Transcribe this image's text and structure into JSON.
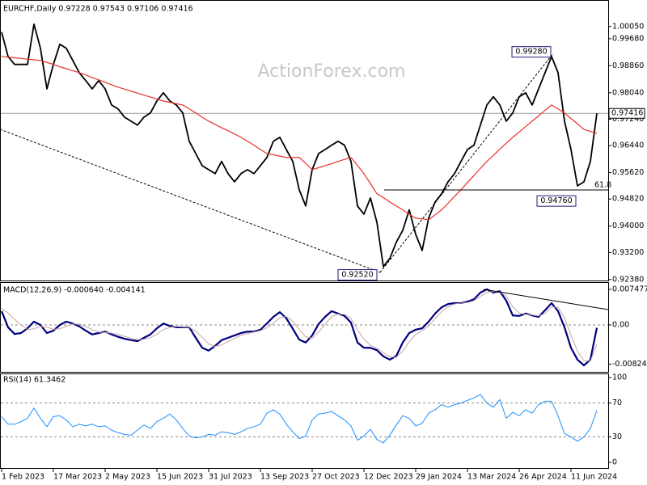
{
  "chart_data": [
    {
      "type": "line",
      "title": "EURCHF,Daily  0.97228 0.97543 0.97106 0.97416",
      "watermark": "ActionForex.com",
      "ylim": [
        0.9235,
        1.0073
      ],
      "yticks": [
        {
          "value": 1.0005,
          "label": "1.00050"
        },
        {
          "value": 0.9968,
          "label": "0.99680"
        },
        {
          "value": 0.9886,
          "label": "0.98860"
        },
        {
          "value": 0.9804,
          "label": "0.98040"
        },
        {
          "value": 0.9724,
          "label": "0.97240"
        },
        {
          "value": 0.9644,
          "label": "0.96440"
        },
        {
          "value": 0.9562,
          "label": "0.95620"
        },
        {
          "value": 0.9482,
          "label": "0.94820"
        },
        {
          "value": 0.94,
          "label": "0.94000"
        },
        {
          "value": 0.932,
          "label": "0.93200"
        },
        {
          "value": 0.9238,
          "label": "0.92380"
        }
      ],
      "last_price": 0.97416,
      "annotations": [
        {
          "label": "0.99280",
          "value": 0.9928
        },
        {
          "label": "0.94760",
          "value": 0.9476
        },
        {
          "label": "0.92520",
          "value": 0.9252
        }
      ],
      "fib_label": "61.8",
      "categories": [
        "1 Feb 2023",
        null,
        null,
        null,
        null,
        null,
        null,
        null,
        "17 Mar 2023",
        null,
        null,
        null,
        null,
        null,
        null,
        null,
        "2 May 2023",
        null,
        null,
        null,
        null,
        null,
        null,
        null,
        "15 Jun 2023",
        null,
        null,
        null,
        null,
        null,
        null,
        null,
        "31 Jul 2023",
        null,
        null,
        null,
        null,
        null,
        null,
        null,
        "13 Sep 2023",
        null,
        null,
        null,
        null,
        null,
        null,
        null,
        "27 Oct 2023",
        null,
        null,
        null,
        null,
        null,
        null,
        null,
        "12 Dec 2023",
        null,
        null,
        null,
        null,
        null,
        null,
        null,
        "29 Jan 2024",
        null,
        null,
        null,
        null,
        null,
        null,
        null,
        "13 Mar 2024",
        null,
        null,
        null,
        null,
        null,
        null,
        null,
        "26 Apr 2024",
        null,
        null,
        null,
        null,
        null,
        null,
        null,
        "11 Jun 2024",
        null,
        null,
        null,
        null
      ],
      "series": [
        {
          "name": "EURCHF",
          "color": "#000000",
          "values": [
            0.9988,
            0.9914,
            0.989,
            0.989,
            0.989,
            1.0012,
            0.9939,
            0.9816,
            0.989,
            0.9951,
            0.9939,
            0.9902,
            0.9865,
            0.9841,
            0.9816,
            0.9841,
            0.9816,
            0.9767,
            0.9755,
            0.973,
            0.9718,
            0.9706,
            0.973,
            0.9743,
            0.9779,
            0.9804,
            0.9779,
            0.9767,
            0.9743,
            0.9657,
            0.962,
            0.9583,
            0.9571,
            0.9559,
            0.9596,
            0.9559,
            0.9534,
            0.9559,
            0.9571,
            0.9559,
            0.9583,
            0.9608,
            0.9657,
            0.9669,
            0.9632,
            0.9596,
            0.951,
            0.9461,
            0.9571,
            0.962,
            0.9632,
            0.9645,
            0.9657,
            0.9645,
            0.9596,
            0.9461,
            0.9436,
            0.9485,
            0.9412,
            0.9277,
            0.9302,
            0.9351,
            0.9387,
            0.9449,
            0.9375,
            0.9326,
            0.9424,
            0.9473,
            0.9498,
            0.9534,
            0.9559,
            0.9596,
            0.9632,
            0.9645,
            0.9706,
            0.9767,
            0.9792,
            0.9767,
            0.9718,
            0.9743,
            0.9792,
            0.9804,
            0.9767,
            0.9816,
            0.9865,
            0.9914,
            0.9865,
            0.9718,
            0.9632,
            0.9522,
            0.9534,
            0.9596,
            0.9742
          ]
        },
        {
          "name": "MA",
          "color": "#e8312a",
          "values": [
            0.9914,
            0.9912,
            0.991,
            0.9908,
            0.9906,
            0.9904,
            0.9902,
            0.9896,
            0.989,
            0.9883,
            0.9877,
            0.9871,
            0.9865,
            0.9858,
            0.985,
            0.9843,
            0.9836,
            0.9828,
            0.9821,
            0.9815,
            0.9809,
            0.9803,
            0.9797,
            0.9791,
            0.9785,
            0.9779,
            0.9775,
            0.9771,
            0.9767,
            0.9755,
            0.9743,
            0.973,
            0.9718,
            0.9708,
            0.9698,
            0.9689,
            0.9679,
            0.9669,
            0.9657,
            0.9645,
            0.9632,
            0.962,
            0.9616,
            0.9612,
            0.9608,
            0.9608,
            0.9608,
            0.959,
            0.9571,
            0.9577,
            0.9583,
            0.9589,
            0.9596,
            0.9602,
            0.9608,
            0.9584,
            0.9559,
            0.9529,
            0.9498,
            0.9486,
            0.9473,
            0.9461,
            0.9449,
            0.9436,
            0.9424,
            0.9422,
            0.9419,
            0.9434,
            0.9449,
            0.9469,
            0.949,
            0.951,
            0.9532,
            0.9553,
            0.9575,
            0.9596,
            0.9614,
            0.9633,
            0.9651,
            0.9669,
            0.9685,
            0.9702,
            0.9718,
            0.9734,
            0.9751,
            0.9767,
            0.9755,
            0.9743,
            0.9726,
            0.971,
            0.9693,
            0.9687,
            0.9681
          ]
        }
      ]
    },
    {
      "type": "line",
      "title": "MACD(12,26,9) -0.000640 -0.004141",
      "ylim": [
        -0.00986,
        0.00884
      ],
      "yticks": [
        0.007477,
        {
          "value": 0,
          "label": "0.00"
        },
        -0.00824
      ],
      "levels": [
        0
      ],
      "series": [
        {
          "name": "MACD",
          "color": "#00007f",
          "values": [
            0.0029,
            -0.0005,
            -0.0019,
            -0.0017,
            -0.0007,
            0.0007,
            0,
            -0.0017,
            -0.0012,
            0,
            0.0007,
            0.0003,
            -0.0003,
            -0.0012,
            -0.002,
            -0.0017,
            -0.0014,
            -0.002,
            -0.0025,
            -0.0029,
            -0.0032,
            -0.0034,
            -0.0027,
            -0.002,
            -0.0007,
            0.0003,
            -0.0002,
            -0.0005,
            -0.0005,
            -0.0005,
            -0.0027,
            -0.0048,
            -0.0054,
            -0.0044,
            -0.0032,
            -0.0027,
            -0.0022,
            -0.0017,
            -0.0014,
            -0.0014,
            -0.001,
            0.0003,
            0.0017,
            0.0027,
            0.0014,
            -0.0008,
            -0.0031,
            -0.0037,
            -0.0022,
            0.0002,
            0.0017,
            0.0029,
            0.0024,
            0.0019,
            0.0005,
            -0.0037,
            -0.0048,
            -0.0048,
            -0.0053,
            -0.0066,
            -0.0073,
            -0.0065,
            -0.0037,
            -0.0017,
            -0.001,
            -0.0007,
            0.0007,
            0.0024,
            0.0037,
            0.0044,
            0.0046,
            0.0046,
            0.0049,
            0.0054,
            0.0068,
            0.0075,
            0.0068,
            0.0071,
            0.0051,
            0.002,
            0.0019,
            0.0024,
            0.002,
            0.0017,
            0.0031,
            0.0046,
            0.0029,
            -0.0005,
            -0.0048,
            -0.0073,
            -0.0085,
            -0.0073,
            -0.0006
          ]
        },
        {
          "name": "Signal",
          "color": "#c8a4a4",
          "values": [
            0.0035,
            0.0025,
            0.0012,
            0,
            -0.001,
            -0.0008,
            -0.0003,
            -0.0005,
            -0.0009,
            -0.0008,
            -0.0003,
            0.0002,
            0.0002,
            -0.0003,
            -0.001,
            -0.0015,
            -0.0016,
            -0.0017,
            -0.002,
            -0.0024,
            -0.0028,
            -0.0031,
            -0.003,
            -0.0027,
            -0.0019,
            -0.001,
            -0.0005,
            -0.0003,
            -0.0004,
            -0.0005,
            -0.0013,
            -0.0026,
            -0.004,
            -0.0045,
            -0.0042,
            -0.0035,
            -0.0028,
            -0.0022,
            -0.0018,
            -0.0015,
            -0.0012,
            -0.0006,
            0.0004,
            0.0015,
            0.0018,
            0.0008,
            -0.001,
            -0.0025,
            -0.0028,
            -0.0015,
            0.0002,
            0.0017,
            0.0023,
            0.0022,
            0.0014,
            -0.001,
            -0.003,
            -0.0043,
            -0.0049,
            -0.0058,
            -0.0067,
            -0.0068,
            -0.0055,
            -0.0035,
            -0.002,
            -0.0012,
            -0.0002,
            0.0013,
            0.0028,
            0.0038,
            0.0044,
            0.0046,
            0.0047,
            0.0051,
            0.006,
            0.0069,
            0.007,
            0.007,
            0.0061,
            0.0038,
            0.0025,
            0.0022,
            0.0021,
            0.0019,
            0.0024,
            0.0038,
            0.0037,
            0.0015,
            -0.0022,
            -0.0055,
            -0.0075,
            -0.0076,
            -0.0041
          ]
        }
      ]
    },
    {
      "type": "line",
      "title": "RSI(14) 61.3462",
      "ylim": [
        -7.6,
        104.8
      ],
      "yticks": [
        100,
        70,
        30,
        0
      ],
      "levels": [
        70,
        30
      ],
      "series": [
        {
          "name": "RSI",
          "color": "#1e90ff",
          "values": [
            54,
            45,
            45,
            48,
            52,
            64,
            52,
            42,
            54,
            55,
            50,
            42,
            45,
            43,
            45,
            42,
            43,
            38,
            35,
            33,
            32,
            38,
            44,
            40,
            48,
            52,
            57,
            50,
            40,
            31,
            29,
            30,
            33,
            32,
            36,
            35,
            33,
            36,
            40,
            42,
            45,
            58,
            62,
            57,
            45,
            36,
            28,
            31,
            50,
            57,
            58,
            60,
            55,
            50,
            43,
            26,
            31,
            39,
            27,
            23,
            32,
            44,
            55,
            52,
            43,
            46,
            58,
            62,
            68,
            65,
            68,
            70,
            73,
            76,
            80,
            70,
            65,
            74,
            52,
            59,
            55,
            62,
            58,
            68,
            72,
            72,
            55,
            34,
            30,
            25,
            30,
            40,
            61.3
          ]
        }
      ]
    }
  ]
}
